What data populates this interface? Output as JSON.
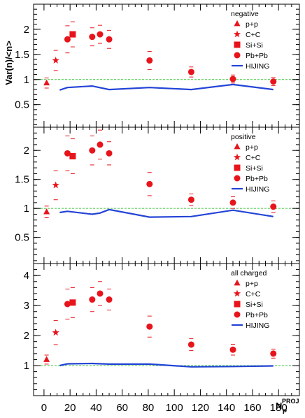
{
  "colors": {
    "data": "#e8141b",
    "hijing": "#2243d6",
    "reference": "#3cc83c",
    "frame": "#000000"
  },
  "ylabel": "Var(n)/<n>",
  "xlabel": {
    "main": "N",
    "sub": "P",
    "sup": "PROJ"
  },
  "x_axis": {
    "range": [
      -8,
      196
    ],
    "ticks": [
      0,
      20,
      40,
      60,
      80,
      100,
      120,
      140,
      160,
      180
    ],
    "tick_labels": [
      "0",
      "20",
      "40",
      "60",
      "80",
      "100",
      "120",
      "140",
      "160",
      "180"
    ]
  },
  "legend_items": [
    "p+p",
    "C+C",
    "Si+Si",
    "Pb+Pb",
    "HIJING"
  ],
  "chart_data": [
    {
      "type": "scatter",
      "panel_label": "negative",
      "ylim": [
        0.05,
        2.5
      ],
      "yticks": [
        0.5,
        1,
        1.5,
        2
      ],
      "ytick_labels": [
        "0.5",
        "1",
        "1.5",
        "2"
      ],
      "reference_line": 1,
      "series": [
        {
          "name": "p+p",
          "marker": "triangle",
          "points": [
            {
              "x": 2,
              "y": 0.93,
              "err": 0.1
            }
          ]
        },
        {
          "name": "C+C",
          "marker": "star",
          "points": [
            {
              "x": 9,
              "y": 1.38,
              "err": 0.2
            }
          ]
        },
        {
          "name": "Si+Si",
          "marker": "square",
          "points": [
            {
              "x": 22,
              "y": 1.9,
              "err": 0.25
            }
          ]
        },
        {
          "name": "Pb+Pb",
          "marker": "circle",
          "points": [
            {
              "x": 18,
              "y": 1.8,
              "err": 0.27
            },
            {
              "x": 37,
              "y": 1.85,
              "err": 0.18
            },
            {
              "x": 43,
              "y": 1.9,
              "err": 0.18
            },
            {
              "x": 50,
              "y": 1.8,
              "err": 0.18
            },
            {
              "x": 81,
              "y": 1.38,
              "err": 0.18
            },
            {
              "x": 113,
              "y": 1.15,
              "err": 0.1
            },
            {
              "x": 145,
              "y": 1.01,
              "err": 0.08
            },
            {
              "x": 176,
              "y": 0.96,
              "err": 0.08
            }
          ]
        },
        {
          "name": "HIJING",
          "marker": "line",
          "points": [
            {
              "x": 12,
              "y": 0.79
            },
            {
              "x": 18,
              "y": 0.84
            },
            {
              "x": 37,
              "y": 0.87
            },
            {
              "x": 50,
              "y": 0.8
            },
            {
              "x": 81,
              "y": 0.84
            },
            {
              "x": 113,
              "y": 0.8
            },
            {
              "x": 145,
              "y": 0.9
            },
            {
              "x": 176,
              "y": 0.8
            }
          ]
        }
      ]
    },
    {
      "type": "scatter",
      "panel_label": "positive",
      "ylim": [
        0.05,
        2.4
      ],
      "yticks": [
        0.5,
        1,
        1.5,
        2
      ],
      "ytick_labels": [
        "0.5",
        "1",
        "1.5",
        "2"
      ],
      "reference_line": 1,
      "series": [
        {
          "name": "p+p",
          "marker": "triangle",
          "points": [
            {
              "x": 2,
              "y": 0.94,
              "err": 0.1
            }
          ]
        },
        {
          "name": "C+C",
          "marker": "star",
          "points": [
            {
              "x": 9,
              "y": 1.4,
              "err": 0.25
            }
          ]
        },
        {
          "name": "Si+Si",
          "marker": "square",
          "points": [
            {
              "x": 22,
              "y": 1.9,
              "err": 0.3
            }
          ]
        },
        {
          "name": "Pb+Pb",
          "marker": "circle",
          "points": [
            {
              "x": 18,
              "y": 1.95,
              "err": 0.3
            },
            {
              "x": 37,
              "y": 2.0,
              "err": 0.25
            },
            {
              "x": 43,
              "y": 2.1,
              "err": 0.25
            },
            {
              "x": 50,
              "y": 1.95,
              "err": 0.2
            },
            {
              "x": 81,
              "y": 1.42,
              "err": 0.2
            },
            {
              "x": 113,
              "y": 1.15,
              "err": 0.1
            },
            {
              "x": 145,
              "y": 1.1,
              "err": 0.1
            },
            {
              "x": 176,
              "y": 1.03,
              "err": 0.1
            }
          ]
        },
        {
          "name": "HIJING",
          "marker": "line",
          "points": [
            {
              "x": 12,
              "y": 0.93
            },
            {
              "x": 18,
              "y": 0.95
            },
            {
              "x": 37,
              "y": 0.9
            },
            {
              "x": 43,
              "y": 0.92
            },
            {
              "x": 50,
              "y": 0.98
            },
            {
              "x": 81,
              "y": 0.85
            },
            {
              "x": 113,
              "y": 0.86
            },
            {
              "x": 145,
              "y": 0.97
            },
            {
              "x": 176,
              "y": 0.86
            }
          ]
        }
      ]
    },
    {
      "type": "scatter",
      "panel_label": "all charged",
      "ylim": [
        0.0,
        4.4
      ],
      "yticks": [
        1,
        2,
        3,
        4
      ],
      "ytick_labels": [
        "1",
        "2",
        "3",
        "4"
      ],
      "reference_line": 1,
      "series": [
        {
          "name": "p+p",
          "marker": "triangle",
          "points": [
            {
              "x": 2,
              "y": 1.2,
              "err": 0.15
            }
          ]
        },
        {
          "name": "C+C",
          "marker": "star",
          "points": [
            {
              "x": 9,
              "y": 2.1,
              "err": 0.4
            }
          ]
        },
        {
          "name": "Si+Si",
          "marker": "square",
          "points": [
            {
              "x": 22,
              "y": 3.1,
              "err": 0.5
            }
          ]
        },
        {
          "name": "Pb+Pb",
          "marker": "circle",
          "points": [
            {
              "x": 18,
              "y": 3.05,
              "err": 0.5
            },
            {
              "x": 37,
              "y": 3.2,
              "err": 0.4
            },
            {
              "x": 43,
              "y": 3.4,
              "err": 0.4
            },
            {
              "x": 50,
              "y": 3.2,
              "err": 0.35
            },
            {
              "x": 81,
              "y": 2.3,
              "err": 0.35
            },
            {
              "x": 113,
              "y": 1.7,
              "err": 0.2
            },
            {
              "x": 145,
              "y": 1.53,
              "err": 0.18
            },
            {
              "x": 176,
              "y": 1.4,
              "err": 0.15
            }
          ]
        },
        {
          "name": "HIJING",
          "marker": "line",
          "points": [
            {
              "x": 12,
              "y": 1.0
            },
            {
              "x": 18,
              "y": 1.06
            },
            {
              "x": 37,
              "y": 1.07
            },
            {
              "x": 50,
              "y": 1.05
            },
            {
              "x": 81,
              "y": 1.05
            },
            {
              "x": 113,
              "y": 0.96
            },
            {
              "x": 145,
              "y": 0.97
            },
            {
              "x": 176,
              "y": 0.99
            }
          ]
        }
      ]
    }
  ]
}
